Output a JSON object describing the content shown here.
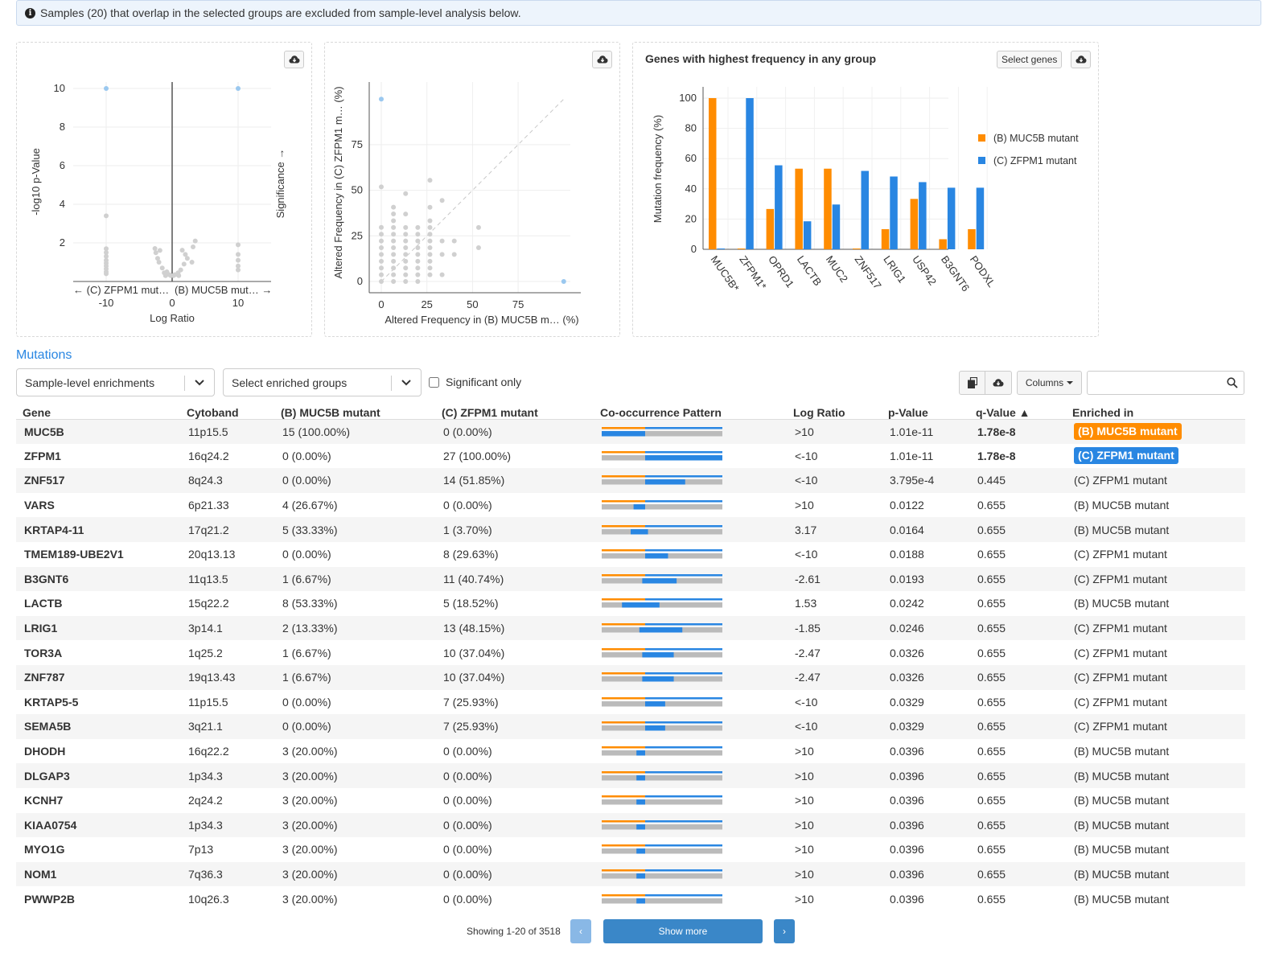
{
  "alert": {
    "icon": "info-circle-icon",
    "text": "Samples (20) that overlap in the selected groups are excluded from sample-level analysis below."
  },
  "colors": {
    "orange": "#ff8c00",
    "blue": "#2986e2",
    "grey": "#bbbbbb",
    "light_point": "#d0d0d0",
    "highlight_point": "#9ac8ef"
  },
  "volcano": {
    "download_icon": "cloud-download-icon",
    "ylabel": "-log10 p-Value",
    "significance_label": "Significance →",
    "xlabel": "Log Ratio",
    "left_group_label": "← (C) ZFPM1 mut…",
    "right_group_label": "(B) MUC5B mut… →",
    "yticks": [
      "2",
      "4",
      "6",
      "8",
      "10"
    ],
    "xticks": [
      "-10",
      "0",
      "10"
    ]
  },
  "scatter": {
    "download_icon": "cloud-download-icon",
    "ylabel": "Altered Frequency in (C) ZFPM1 m… (%)",
    "xlabel": "Altered Frequency in (B) MUC5B m… (%)",
    "yticks": [
      "0",
      "25",
      "50",
      "75"
    ],
    "xticks": [
      "0",
      "25",
      "50",
      "75"
    ]
  },
  "genes_chart": {
    "title": "Genes with highest frequency in any group",
    "select_genes_label": "Select genes",
    "download_icon": "cloud-download-icon"
  },
  "chart_data": [
    {
      "type": "scatter",
      "name": "volcano",
      "xlabel": "Log Ratio",
      "ylabel": "-log10 p-Value",
      "xlim": [
        -15,
        15
      ],
      "ylim": [
        0,
        11
      ],
      "points": [
        {
          "x": -10,
          "y": 10,
          "highlight": true
        },
        {
          "x": 10,
          "y": 10,
          "highlight": true
        },
        {
          "x": -10,
          "y": 3.4
        },
        {
          "x": -10,
          "y": 1.7
        },
        {
          "x": -10,
          "y": 1.5
        },
        {
          "x": -10,
          "y": 1.3
        },
        {
          "x": -10,
          "y": 1.1
        },
        {
          "x": -10,
          "y": 0.95
        },
        {
          "x": -10,
          "y": 0.8
        },
        {
          "x": -10,
          "y": 0.65
        },
        {
          "x": -10,
          "y": 0.5
        },
        {
          "x": -10,
          "y": 0.4
        },
        {
          "x": 10,
          "y": 1.9
        },
        {
          "x": 10,
          "y": 1.4
        },
        {
          "x": 10,
          "y": 1.1
        },
        {
          "x": 10,
          "y": 0.8
        },
        {
          "x": 10,
          "y": 0.6
        },
        {
          "x": -2.61,
          "y": 1.71
        },
        {
          "x": -2.47,
          "y": 1.49
        },
        {
          "x": -1.85,
          "y": 1.61
        },
        {
          "x": 1.53,
          "y": 1.62
        },
        {
          "x": 3.17,
          "y": 1.79
        },
        {
          "x": 2.3,
          "y": 1.2
        },
        {
          "x": 1.8,
          "y": 0.9
        },
        {
          "x": 3.0,
          "y": 1.0
        },
        {
          "x": -2.0,
          "y": 1.0
        },
        {
          "x": -1.5,
          "y": 0.7
        },
        {
          "x": -0.8,
          "y": 0.5
        },
        {
          "x": -0.4,
          "y": 0.35
        },
        {
          "x": 0.4,
          "y": 0.35
        },
        {
          "x": 0.9,
          "y": 0.45
        },
        {
          "x": -1.2,
          "y": 0.45
        },
        {
          "x": 1.3,
          "y": 0.6
        },
        {
          "x": -2.2,
          "y": 1.2
        },
        {
          "x": 2.0,
          "y": 1.4
        },
        {
          "x": -0.2,
          "y": 0.3
        },
        {
          "x": 0.2,
          "y": 0.3
        },
        {
          "x": -1.0,
          "y": 0.3
        },
        {
          "x": 1.0,
          "y": 0.3
        },
        {
          "x": 3.5,
          "y": 2.1
        }
      ]
    },
    {
      "type": "scatter",
      "name": "altered-frequency",
      "xlabel": "Altered Frequency in (B) MUC5B m… (%)",
      "ylabel": "Altered Frequency in (C) ZFPM1 m… (%)",
      "xlim": [
        0,
        100
      ],
      "ylim": [
        0,
        105
      ],
      "points": [
        {
          "x": 0,
          "y": 100,
          "highlight": true
        },
        {
          "x": 100,
          "y": 0,
          "highlight": true
        },
        {
          "x": 0,
          "y": 51.85
        },
        {
          "x": 0,
          "y": 29.63
        },
        {
          "x": 0,
          "y": 25.93
        },
        {
          "x": 0,
          "y": 22.2
        },
        {
          "x": 0,
          "y": 18.5
        },
        {
          "x": 0,
          "y": 14.8
        },
        {
          "x": 0,
          "y": 11.1
        },
        {
          "x": 0,
          "y": 7.4
        },
        {
          "x": 0,
          "y": 3.7
        },
        {
          "x": 0,
          "y": 0
        },
        {
          "x": 6.67,
          "y": 40.74
        },
        {
          "x": 6.67,
          "y": 37.04
        },
        {
          "x": 6.67,
          "y": 33.3
        },
        {
          "x": 6.67,
          "y": 29.6
        },
        {
          "x": 6.67,
          "y": 25.9
        },
        {
          "x": 6.67,
          "y": 22.2
        },
        {
          "x": 6.67,
          "y": 18.5
        },
        {
          "x": 6.67,
          "y": 14.8
        },
        {
          "x": 6.67,
          "y": 11.1
        },
        {
          "x": 6.67,
          "y": 7.4
        },
        {
          "x": 6.67,
          "y": 3.7
        },
        {
          "x": 6.67,
          "y": 0
        },
        {
          "x": 13.33,
          "y": 48.15
        },
        {
          "x": 13.33,
          "y": 37.0
        },
        {
          "x": 13.33,
          "y": 29.6
        },
        {
          "x": 13.33,
          "y": 25.9
        },
        {
          "x": 13.33,
          "y": 22.2
        },
        {
          "x": 13.33,
          "y": 18.5
        },
        {
          "x": 13.33,
          "y": 14.8
        },
        {
          "x": 13.33,
          "y": 11.1
        },
        {
          "x": 13.33,
          "y": 7.4
        },
        {
          "x": 13.33,
          "y": 3.7
        },
        {
          "x": 13.33,
          "y": 0
        },
        {
          "x": 20,
          "y": 29.6
        },
        {
          "x": 20,
          "y": 25.9
        },
        {
          "x": 20,
          "y": 22.2
        },
        {
          "x": 20,
          "y": 18.5
        },
        {
          "x": 20,
          "y": 14.8
        },
        {
          "x": 20,
          "y": 11.1
        },
        {
          "x": 20,
          "y": 7.4
        },
        {
          "x": 20,
          "y": 3.7
        },
        {
          "x": 20,
          "y": 0
        },
        {
          "x": 26.67,
          "y": 55.5
        },
        {
          "x": 26.67,
          "y": 40.7
        },
        {
          "x": 26.67,
          "y": 33.3
        },
        {
          "x": 26.67,
          "y": 29.6
        },
        {
          "x": 26.67,
          "y": 25.9
        },
        {
          "x": 26.67,
          "y": 22.2
        },
        {
          "x": 26.67,
          "y": 18.5
        },
        {
          "x": 26.67,
          "y": 14.8
        },
        {
          "x": 26.67,
          "y": 11.1
        },
        {
          "x": 26.67,
          "y": 7.4
        },
        {
          "x": 26.67,
          "y": 3.7
        },
        {
          "x": 33.33,
          "y": 44.4
        },
        {
          "x": 33.33,
          "y": 22.2
        },
        {
          "x": 33.33,
          "y": 14.8
        },
        {
          "x": 33.33,
          "y": 3.7
        },
        {
          "x": 40,
          "y": 14.8
        },
        {
          "x": 40,
          "y": 22.2
        },
        {
          "x": 53.33,
          "y": 18.52
        },
        {
          "x": 53.33,
          "y": 29.6
        }
      ]
    },
    {
      "type": "bar",
      "name": "genes-highest-frequency",
      "title": "Genes with highest frequency in any group",
      "ylabel": "Mutation frequency (%)",
      "ylim": [
        0,
        100
      ],
      "yticks": [
        "0",
        "20",
        "40",
        "60",
        "80",
        "100"
      ],
      "categories": [
        "MUC5B*",
        "ZFPM1*",
        "OPRD1",
        "LACTB",
        "MUC2",
        "ZNF517",
        "LRIG1",
        "USP42",
        "B3GNT6",
        "PODXL"
      ],
      "series": [
        {
          "name": "(B) MUC5B mutant",
          "color": "#ff8c00",
          "values": [
            100,
            0,
            26.67,
            53.33,
            53.33,
            0,
            13.33,
            33.33,
            6.67,
            13.33
          ]
        },
        {
          "name": "(C) ZFPM1 mutant",
          "color": "#2986e2",
          "values": [
            0,
            100,
            55.56,
            18.52,
            29.63,
            51.85,
            48.15,
            44.44,
            40.74,
            40.74
          ]
        }
      ],
      "legend_position": "right"
    }
  ],
  "mutations": {
    "section_title": "Mutations",
    "enrichment_select": "Sample-level enrichments",
    "groups_select": "Select enriched groups",
    "significant_only_label": "Significant only",
    "copy_icon": "copy-icon",
    "download_icon": "cloud-download-icon",
    "columns_label": "Columns",
    "search_placeholder": "",
    "headers": [
      "Gene",
      "Cytoband",
      "(B) MUC5B mutant",
      "(C) ZFPM1 mutant",
      "Co-occurrence Pattern",
      "Log Ratio",
      "p-Value",
      "q-Value ▲",
      "Enriched in"
    ],
    "rows": [
      {
        "gene": "MUC5B",
        "cytoband": "11p15.5",
        "b": "15 (100.00%)",
        "c": "0 (0.00%)",
        "b_frac": 1.0,
        "c_frac": 0.0,
        "log_ratio": ">10",
        "p": "1.01e-11",
        "q": "1.78e-8",
        "q_bold": true,
        "enriched": "(B) MUC5B mutant",
        "enriched_group": "B",
        "badge": true
      },
      {
        "gene": "ZFPM1",
        "cytoband": "16q24.2",
        "b": "0 (0.00%)",
        "c": "27 (100.00%)",
        "b_frac": 0.0,
        "c_frac": 1.0,
        "log_ratio": "<-10",
        "p": "1.01e-11",
        "q": "1.78e-8",
        "q_bold": true,
        "enriched": "(C) ZFPM1 mutant",
        "enriched_group": "C",
        "badge": true
      },
      {
        "gene": "ZNF517",
        "cytoband": "8q24.3",
        "b": "0 (0.00%)",
        "c": "14 (51.85%)",
        "b_frac": 0.0,
        "c_frac": 0.5185,
        "log_ratio": "<-10",
        "p": "3.795e-4",
        "q": "0.445",
        "q_bold": false,
        "enriched": "(C) ZFPM1 mutant",
        "enriched_group": "C",
        "badge": false
      },
      {
        "gene": "VARS",
        "cytoband": "6p21.33",
        "b": "4 (26.67%)",
        "c": "0 (0.00%)",
        "b_frac": 0.2667,
        "c_frac": 0.0,
        "log_ratio": ">10",
        "p": "0.0122",
        "q": "0.655",
        "q_bold": false,
        "enriched": "(B) MUC5B mutant",
        "enriched_group": "B",
        "badge": false
      },
      {
        "gene": "KRTAP4-11",
        "cytoband": "17q21.2",
        "b": "5 (33.33%)",
        "c": "1 (3.70%)",
        "b_frac": 0.3333,
        "c_frac": 0.037,
        "log_ratio": "3.17",
        "p": "0.0164",
        "q": "0.655",
        "q_bold": false,
        "enriched": "(B) MUC5B mutant",
        "enriched_group": "B",
        "badge": false
      },
      {
        "gene": "TMEM189-UBE2V1",
        "cytoband": "20q13.13",
        "b": "0 (0.00%)",
        "c": "8 (29.63%)",
        "b_frac": 0.0,
        "c_frac": 0.2963,
        "log_ratio": "<-10",
        "p": "0.0188",
        "q": "0.655",
        "q_bold": false,
        "enriched": "(C) ZFPM1 mutant",
        "enriched_group": "C",
        "badge": false
      },
      {
        "gene": "B3GNT6",
        "cytoband": "11q13.5",
        "b": "1 (6.67%)",
        "c": "11 (40.74%)",
        "b_frac": 0.0667,
        "c_frac": 0.4074,
        "log_ratio": "-2.61",
        "p": "0.0193",
        "q": "0.655",
        "q_bold": false,
        "enriched": "(C) ZFPM1 mutant",
        "enriched_group": "C",
        "badge": false
      },
      {
        "gene": "LACTB",
        "cytoband": "15q22.2",
        "b": "8 (53.33%)",
        "c": "5 (18.52%)",
        "b_frac": 0.5333,
        "c_frac": 0.1852,
        "log_ratio": "1.53",
        "p": "0.0242",
        "q": "0.655",
        "q_bold": false,
        "enriched": "(B) MUC5B mutant",
        "enriched_group": "B",
        "badge": false
      },
      {
        "gene": "LRIG1",
        "cytoband": "3p14.1",
        "b": "2 (13.33%)",
        "c": "13 (48.15%)",
        "b_frac": 0.1333,
        "c_frac": 0.4815,
        "log_ratio": "-1.85",
        "p": "0.0246",
        "q": "0.655",
        "q_bold": false,
        "enriched": "(C) ZFPM1 mutant",
        "enriched_group": "C",
        "badge": false
      },
      {
        "gene": "TOR3A",
        "cytoband": "1q25.2",
        "b": "1 (6.67%)",
        "c": "10 (37.04%)",
        "b_frac": 0.0667,
        "c_frac": 0.3704,
        "log_ratio": "-2.47",
        "p": "0.0326",
        "q": "0.655",
        "q_bold": false,
        "enriched": "(C) ZFPM1 mutant",
        "enriched_group": "C",
        "badge": false
      },
      {
        "gene": "ZNF787",
        "cytoband": "19q13.43",
        "b": "1 (6.67%)",
        "c": "10 (37.04%)",
        "b_frac": 0.0667,
        "c_frac": 0.3704,
        "log_ratio": "-2.47",
        "p": "0.0326",
        "q": "0.655",
        "q_bold": false,
        "enriched": "(C) ZFPM1 mutant",
        "enriched_group": "C",
        "badge": false
      },
      {
        "gene": "KRTAP5-5",
        "cytoband": "11p15.5",
        "b": "0 (0.00%)",
        "c": "7 (25.93%)",
        "b_frac": 0.0,
        "c_frac": 0.2593,
        "log_ratio": "<-10",
        "p": "0.0329",
        "q": "0.655",
        "q_bold": false,
        "enriched": "(C) ZFPM1 mutant",
        "enriched_group": "C",
        "badge": false
      },
      {
        "gene": "SEMA5B",
        "cytoband": "3q21.1",
        "b": "0 (0.00%)",
        "c": "7 (25.93%)",
        "b_frac": 0.0,
        "c_frac": 0.2593,
        "log_ratio": "<-10",
        "p": "0.0329",
        "q": "0.655",
        "q_bold": false,
        "enriched": "(C) ZFPM1 mutant",
        "enriched_group": "C",
        "badge": false
      },
      {
        "gene": "DHODH",
        "cytoband": "16q22.2",
        "b": "3 (20.00%)",
        "c": "0 (0.00%)",
        "b_frac": 0.2,
        "c_frac": 0.0,
        "log_ratio": ">10",
        "p": "0.0396",
        "q": "0.655",
        "q_bold": false,
        "enriched": "(B) MUC5B mutant",
        "enriched_group": "B",
        "badge": false
      },
      {
        "gene": "DLGAP3",
        "cytoband": "1p34.3",
        "b": "3 (20.00%)",
        "c": "0 (0.00%)",
        "b_frac": 0.2,
        "c_frac": 0.0,
        "log_ratio": ">10",
        "p": "0.0396",
        "q": "0.655",
        "q_bold": false,
        "enriched": "(B) MUC5B mutant",
        "enriched_group": "B",
        "badge": false
      },
      {
        "gene": "KCNH7",
        "cytoband": "2q24.2",
        "b": "3 (20.00%)",
        "c": "0 (0.00%)",
        "b_frac": 0.2,
        "c_frac": 0.0,
        "log_ratio": ">10",
        "p": "0.0396",
        "q": "0.655",
        "q_bold": false,
        "enriched": "(B) MUC5B mutant",
        "enriched_group": "B",
        "badge": false
      },
      {
        "gene": "KIAA0754",
        "cytoband": "1p34.3",
        "b": "3 (20.00%)",
        "c": "0 (0.00%)",
        "b_frac": 0.2,
        "c_frac": 0.0,
        "log_ratio": ">10",
        "p": "0.0396",
        "q": "0.655",
        "q_bold": false,
        "enriched": "(B) MUC5B mutant",
        "enriched_group": "B",
        "badge": false
      },
      {
        "gene": "MYO1G",
        "cytoband": "7p13",
        "b": "3 (20.00%)",
        "c": "0 (0.00%)",
        "b_frac": 0.2,
        "c_frac": 0.0,
        "log_ratio": ">10",
        "p": "0.0396",
        "q": "0.655",
        "q_bold": false,
        "enriched": "(B) MUC5B mutant",
        "enriched_group": "B",
        "badge": false
      },
      {
        "gene": "NOM1",
        "cytoband": "7q36.3",
        "b": "3 (20.00%)",
        "c": "0 (0.00%)",
        "b_frac": 0.2,
        "c_frac": 0.0,
        "log_ratio": ">10",
        "p": "0.0396",
        "q": "0.655",
        "q_bold": false,
        "enriched": "(B) MUC5B mutant",
        "enriched_group": "B",
        "badge": false
      },
      {
        "gene": "PWWP2B",
        "cytoband": "10q26.3",
        "b": "3 (20.00%)",
        "c": "0 (0.00%)",
        "b_frac": 0.2,
        "c_frac": 0.0,
        "log_ratio": ">10",
        "p": "0.0396",
        "q": "0.655",
        "q_bold": false,
        "enriched": "(B) MUC5B mutant",
        "enriched_group": "B",
        "badge": false
      }
    ]
  },
  "pagination": {
    "showing": "Showing 1-20 of 3518",
    "prev": "‹",
    "show_more": "Show more",
    "next": "›"
  }
}
